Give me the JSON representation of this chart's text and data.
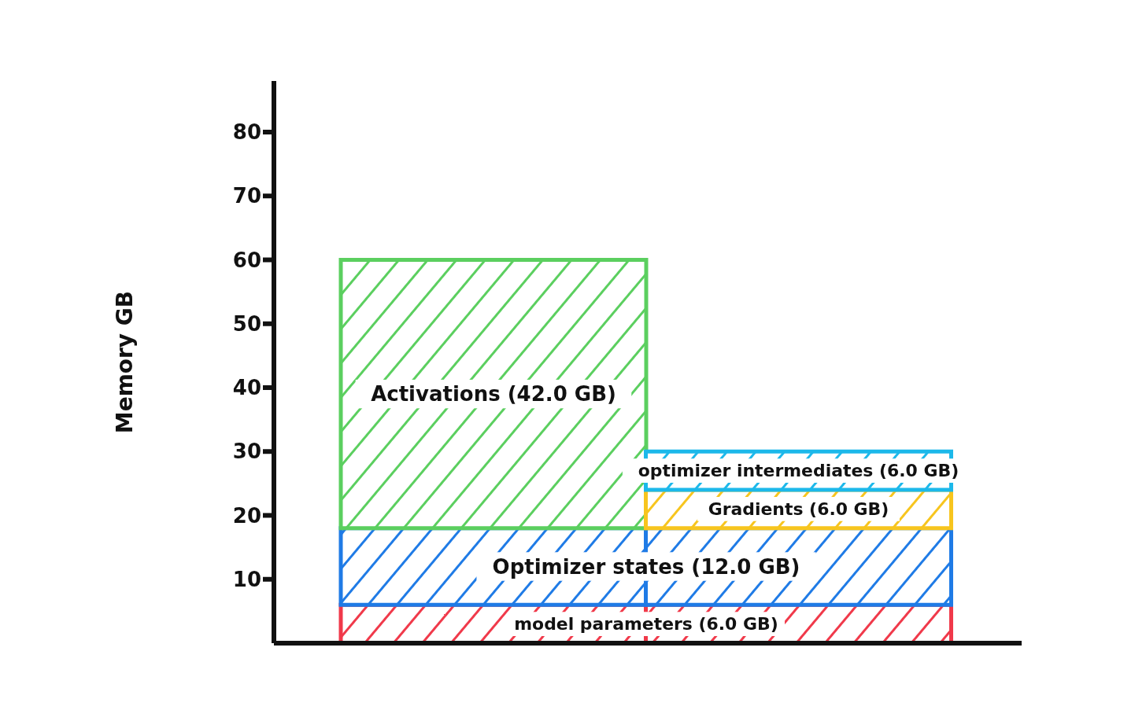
{
  "chart_data": {
    "type": "bar",
    "stacked": true,
    "ylabel": "Memory GB",
    "categories": [
      null,
      null
    ],
    "tick_labels": "y",
    "grid": false,
    "legend": false,
    "ylim": [
      0,
      88
    ],
    "yticks": [
      10,
      20,
      30,
      40,
      50,
      60,
      70,
      80
    ],
    "series": [
      {
        "color": "#f0394a",
        "values": [
          6.0,
          6.0
        ],
        "value_labels": [
          "model parameters (6.0 GB)",
          null
        ]
      },
      {
        "color": "#1f7be6",
        "values": [
          12.0,
          12.0
        ],
        "value_labels": [
          "Optimizer states (12.0 GB)",
          null
        ]
      },
      {
        "color": "#5bcf5f",
        "values": [
          42.0,
          null
        ],
        "value_labels": [
          "Activations (42.0 GB)",
          null
        ]
      },
      {
        "color": "#f7c51e",
        "values": [
          null,
          6.0
        ],
        "value_labels": [
          null,
          "Gradients (6.0 GB)"
        ]
      },
      {
        "color": "#1cb8ea",
        "values": [
          null,
          6.0
        ],
        "value_labels": [
          null,
          "optimizer intermediates (6.0 GB)"
        ]
      }
    ]
  }
}
